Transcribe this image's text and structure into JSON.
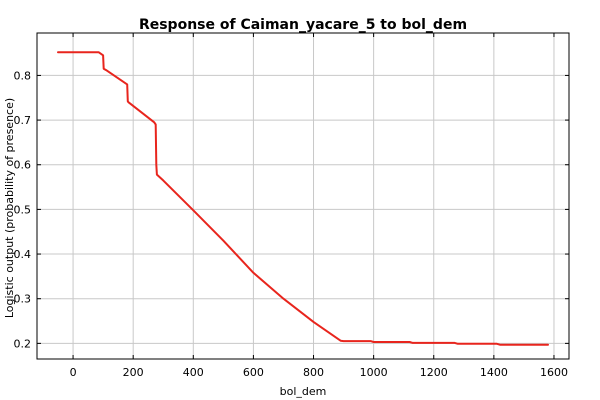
{
  "chart_data": {
    "type": "line",
    "title": "Response of Caiman_yacare_5 to bol_dem",
    "xlabel": "bol_dem",
    "ylabel": "Logistic output (probability of presence)",
    "xlim": [
      -120,
      1650
    ],
    "ylim": [
      0.165,
      0.895
    ],
    "xticks": [
      0,
      200,
      400,
      600,
      800,
      1000,
      1200,
      1400,
      1600
    ],
    "yticks": [
      0.2,
      0.3,
      0.4,
      0.5,
      0.6,
      0.7,
      0.8
    ],
    "ytick_labels": [
      "0.2",
      "0.3",
      "0.4",
      "0.5",
      "0.6",
      "0.7",
      "0.8"
    ],
    "grid": true,
    "series": [
      {
        "color": "#e8251d",
        "x": [
          -50,
          85,
          100,
          102,
          110,
          180,
          182,
          184,
          270,
          275,
          277,
          279,
          300,
          400,
          500,
          600,
          700,
          800,
          890,
          900,
          990,
          1000,
          1120,
          1130,
          1270,
          1280,
          1410,
          1420,
          1580
        ],
        "y": [
          0.852,
          0.852,
          0.845,
          0.815,
          0.812,
          0.78,
          0.742,
          0.74,
          0.695,
          0.69,
          0.6,
          0.578,
          0.565,
          0.498,
          0.43,
          0.358,
          0.3,
          0.248,
          0.206,
          0.205,
          0.205,
          0.203,
          0.203,
          0.201,
          0.201,
          0.199,
          0.199,
          0.197,
          0.197
        ]
      }
    ]
  }
}
